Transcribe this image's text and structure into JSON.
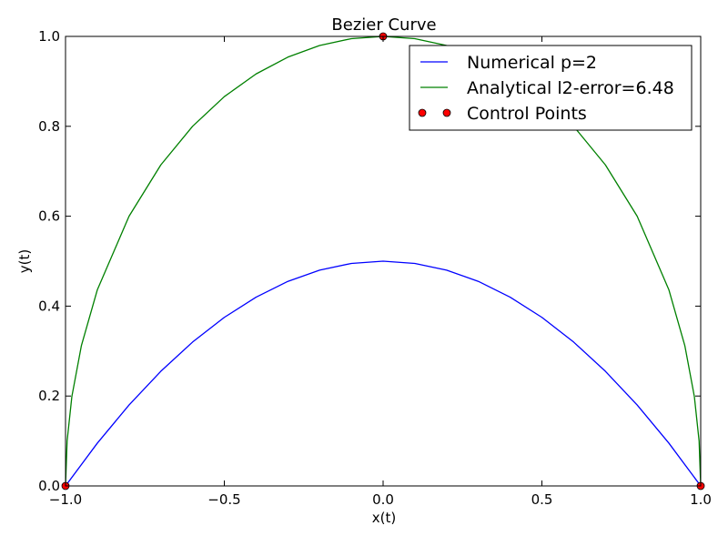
{
  "chart_data": {
    "type": "line",
    "title": "Bezier Curve",
    "xlabel": "x(t)",
    "ylabel": "y(t)",
    "xlim": [
      -1.0,
      1.0
    ],
    "ylim": [
      0.0,
      1.0
    ],
    "x_ticks": [
      -1.0,
      -0.5,
      0.0,
      0.5,
      1.0
    ],
    "x_tick_labels": [
      "−1.0",
      "−0.5",
      "0.0",
      "0.5",
      "1.0"
    ],
    "y_ticks": [
      0.0,
      0.2,
      0.4,
      0.6,
      0.8,
      1.0
    ],
    "y_tick_labels": [
      "0.0",
      "0.2",
      "0.4",
      "0.6",
      "0.8",
      "1.0"
    ],
    "grid": false,
    "legend_position": "top-right",
    "series": [
      {
        "name": "Numerical p=2",
        "kind": "line",
        "color": "#0000ff",
        "x": [
          -1.0,
          -0.9,
          -0.8,
          -0.7,
          -0.6,
          -0.5,
          -0.4,
          -0.3,
          -0.2,
          -0.1,
          0.0,
          0.1,
          0.2,
          0.3,
          0.4,
          0.5,
          0.6,
          0.7,
          0.8,
          0.9,
          1.0
        ],
        "y": [
          0.0,
          0.095,
          0.18,
          0.255,
          0.32,
          0.375,
          0.42,
          0.455,
          0.48,
          0.495,
          0.5,
          0.495,
          0.48,
          0.455,
          0.42,
          0.375,
          0.32,
          0.255,
          0.18,
          0.095,
          0.0
        ]
      },
      {
        "name": "Analytical l2-error=6.48",
        "kind": "line",
        "color": "#008000",
        "x": [
          -1.0,
          -0.995,
          -0.98,
          -0.95,
          -0.9,
          -0.8,
          -0.7,
          -0.6,
          -0.5,
          -0.4,
          -0.3,
          -0.2,
          -0.1,
          0.0,
          0.1,
          0.2,
          0.3,
          0.4,
          0.5,
          0.6,
          0.7,
          0.8,
          0.9,
          0.95,
          0.98,
          0.995,
          1.0
        ],
        "y": [
          0.0,
          0.0999,
          0.199,
          0.3122,
          0.4359,
          0.6,
          0.7141,
          0.8,
          0.866,
          0.9165,
          0.9539,
          0.9798,
          0.995,
          1.0,
          0.995,
          0.9798,
          0.9539,
          0.9165,
          0.866,
          0.8,
          0.7141,
          0.6,
          0.4359,
          0.3122,
          0.199,
          0.0999,
          0.0
        ]
      },
      {
        "name": "Control Points",
        "kind": "markers",
        "color": "#ff0000",
        "x": [
          -1.0,
          0.0,
          1.0
        ],
        "y": [
          0.0,
          1.0,
          0.0
        ]
      }
    ]
  }
}
